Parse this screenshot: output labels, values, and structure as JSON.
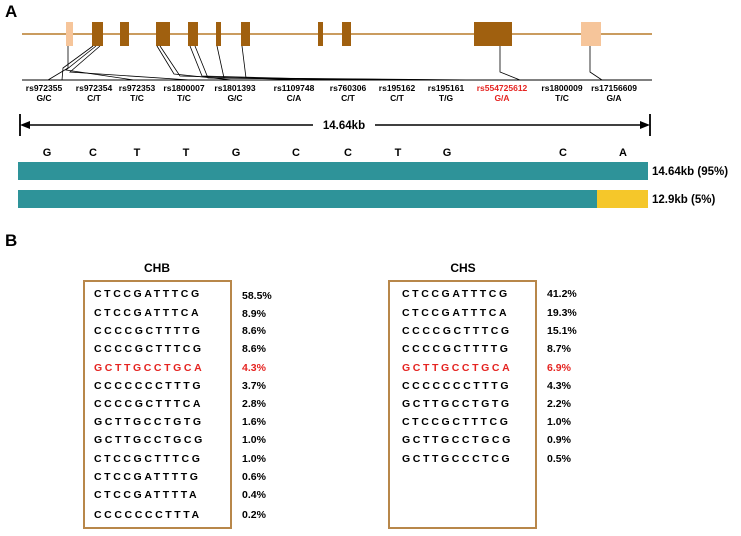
{
  "panel_a": {
    "label": "A",
    "snps": [
      {
        "id": "rs972355",
        "alleles": "G/C",
        "highlight": false
      },
      {
        "id": "rs972354",
        "alleles": "C/T",
        "highlight": false
      },
      {
        "id": "rs972353",
        "alleles": "T/C",
        "highlight": false
      },
      {
        "id": "rs1800007",
        "alleles": "T/C",
        "highlight": false
      },
      {
        "id": "rs1801393",
        "alleles": "G/C",
        "highlight": false
      },
      {
        "id": "rs1109748",
        "alleles": "C/A",
        "highlight": false
      },
      {
        "id": "rs760306",
        "alleles": "C/T",
        "highlight": false
      },
      {
        "id": "rs195162",
        "alleles": "C/T",
        "highlight": false
      },
      {
        "id": "rs195161",
        "alleles": "T/G",
        "highlight": false
      },
      {
        "id": "rs554725612",
        "alleles": "G/A",
        "highlight": true
      },
      {
        "id": "rs1800009",
        "alleles": "T/C",
        "highlight": false
      },
      {
        "id": "rs17156609",
        "alleles": "G/A",
        "highlight": false
      }
    ],
    "span_label": "14.64kb",
    "alleles_row": [
      "G",
      "C",
      "T",
      "T",
      "G",
      "C",
      "C",
      "T",
      "G",
      "C",
      "A"
    ],
    "bars": [
      {
        "label": "14.64kb (95%)",
        "fraction_teal": 1.0
      },
      {
        "label": "12.9kb (5%)",
        "fraction_teal": 0.919
      }
    ],
    "colors": {
      "gene_line": "#b87c2a",
      "exon": "#a0600f",
      "utr": "#f6c59a",
      "teal": "#2e9399",
      "yellow": "#f5c72a",
      "highlight": "#e52421"
    }
  },
  "panel_b": {
    "label": "B",
    "box_color": "#b8874a",
    "populations": [
      {
        "name": "CHB",
        "haplotypes": [
          {
            "seq": "CTCCGATTTCG",
            "freq": "58.5%",
            "highlight": false
          },
          {
            "seq": "CTCCGATTTCA",
            "freq": "8.9%",
            "highlight": false
          },
          {
            "seq": "CCCCGCTTTTG",
            "freq": "8.6%",
            "highlight": false
          },
          {
            "seq": "CCCCGCTTTCG",
            "freq": "8.6%",
            "highlight": false
          },
          {
            "seq": "GCTTGCCTGCA",
            "freq": "4.3%",
            "highlight": true
          },
          {
            "seq": "CCCCCCCTTTG",
            "freq": "3.7%",
            "highlight": false
          },
          {
            "seq": "CCCCGCTTTCA",
            "freq": "2.8%",
            "highlight": false
          },
          {
            "seq": "GCTTGCCTGTG",
            "freq": "1.6%",
            "highlight": false
          },
          {
            "seq": "GCTTGCCTGCG",
            "freq": "1.0%",
            "highlight": false
          },
          {
            "seq": "CTCCGCTTTCG",
            "freq": "1.0%",
            "highlight": false
          },
          {
            "seq": "CTCCGATTTTG",
            "freq": "0.6%",
            "highlight": false
          },
          {
            "seq": "CTCCGATTTTA",
            "freq": "0.4%",
            "highlight": false
          },
          {
            "seq": "CCCCCCCTTTA",
            "freq": "0.2%",
            "highlight": false
          }
        ]
      },
      {
        "name": "CHS",
        "haplotypes": [
          {
            "seq": "CTCCGATTTCG",
            "freq": "41.2%",
            "highlight": false
          },
          {
            "seq": "CTCCGATTTCA",
            "freq": "19.3%",
            "highlight": false
          },
          {
            "seq": "CCCCGCTTTCG",
            "freq": "15.1%",
            "highlight": false
          },
          {
            "seq": "CCCCGCTTTTG",
            "freq": "8.7%",
            "highlight": false
          },
          {
            "seq": "GCTTGCCTGCA",
            "freq": "6.9%",
            "highlight": true
          },
          {
            "seq": "CCCCCCCTTTG",
            "freq": "4.3%",
            "highlight": false
          },
          {
            "seq": "GCTTGCCTGTG",
            "freq": "2.2%",
            "highlight": false
          },
          {
            "seq": "CTCCGCTTTCG",
            "freq": "1.0%",
            "highlight": false
          },
          {
            "seq": "GCTTGCCTGCG",
            "freq": "0.9%",
            "highlight": false
          },
          {
            "seq": "GCTTGCCCTCG",
            "freq": "0.5%",
            "highlight": false
          }
        ]
      }
    ]
  }
}
